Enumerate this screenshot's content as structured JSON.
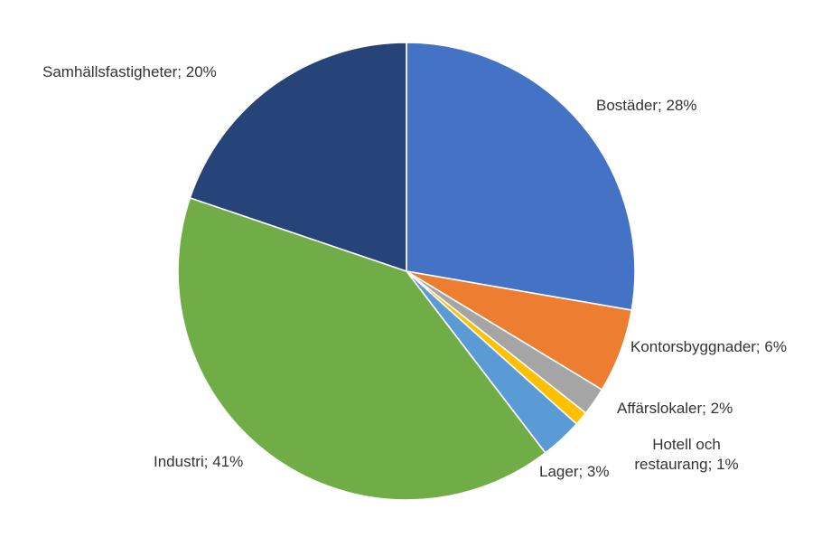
{
  "chart_data": {
    "type": "pie",
    "title": "",
    "categories": [
      "Bostäder",
      "Kontorsbyggnader",
      "Affärslokaler",
      "Hotell och restaurang",
      "Lager",
      "Industri",
      "Samhällsfastigheter"
    ],
    "values": [
      28,
      6,
      2,
      1,
      3,
      41,
      20
    ],
    "unit": "%",
    "labels": [
      [
        "Bostäder; 28%"
      ],
      [
        "Kontorsbyggnader; 6%"
      ],
      [
        "Affärslokaler; 2%"
      ],
      [
        "Hotell och",
        "restaurang; 1%"
      ],
      [
        "Lager; 3%"
      ],
      [
        "Industri; 41%"
      ],
      [
        "Samhällsfastigheter; 20%"
      ]
    ],
    "colors": [
      "#4472C4",
      "#ED7D31",
      "#A5A5A5",
      "#FFC000",
      "#5B9BD5",
      "#70AD47",
      "#264478"
    ],
    "start_angle": "12 o'clock",
    "direction": "clockwise",
    "legend": "none"
  }
}
